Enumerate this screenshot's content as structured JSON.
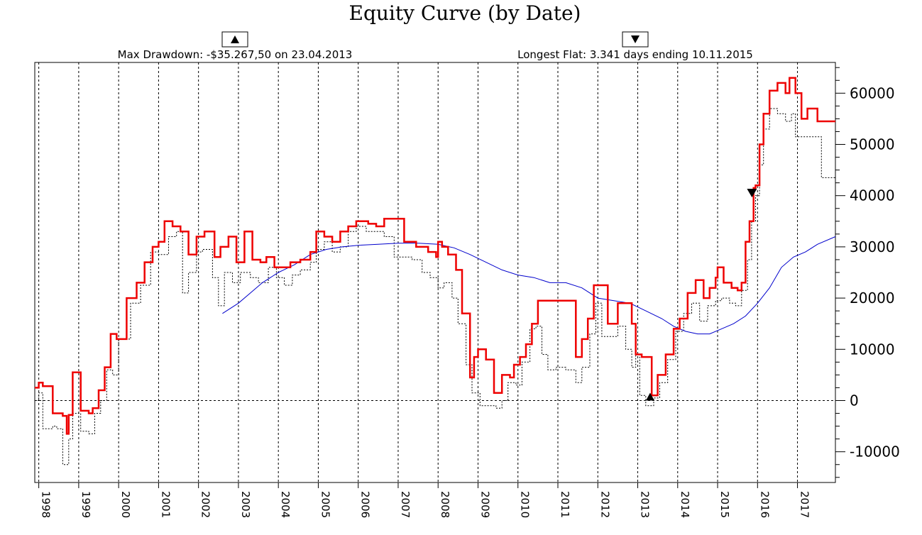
{
  "chart_data": {
    "type": "line",
    "title": "Equity Curve (by Date)",
    "annotations": {
      "max_drawdown": "Max Drawdown: -$35.267,50 on 23.04.2013",
      "longest_flat": "Longest Flat: 3.341 days ending 10.11.2015",
      "max_drawdown_date": 2013.31,
      "longest_flat_end_date": 2015.86
    },
    "xlim": [
      1997.9,
      2017.95
    ],
    "ylim": [
      -16000,
      66000
    ],
    "x_ticks": [
      "1998",
      "1999",
      "2000",
      "2001",
      "2002",
      "2003",
      "2004",
      "2005",
      "2006",
      "2007",
      "2008",
      "2009",
      "2010",
      "2011",
      "2012",
      "2013",
      "2014",
      "2015",
      "2016",
      "2017"
    ],
    "y_ticks": [
      60000,
      50000,
      40000,
      30000,
      20000,
      10000,
      0,
      -10000
    ],
    "y_tick_labels": [
      "60000",
      "50000",
      "40000",
      "30000",
      "20000",
      "10000",
      "0",
      "-10000"
    ],
    "grid": "vertical dotted at each year, dotted zero line",
    "series": [
      {
        "name": "",
        "color": "#ee0000",
        "points": [
          [
            1997.9,
            2500
          ],
          [
            1998.0,
            3500
          ],
          [
            1998.1,
            2800
          ],
          [
            1998.35,
            -2500
          ],
          [
            1998.6,
            -3000
          ],
          [
            1998.7,
            -6500
          ],
          [
            1998.75,
            -2800
          ],
          [
            1998.85,
            5500
          ],
          [
            1999.05,
            -2000
          ],
          [
            1999.25,
            -2500
          ],
          [
            1999.35,
            -1500
          ],
          [
            1999.5,
            2000
          ],
          [
            1999.65,
            6500
          ],
          [
            1999.8,
            13000
          ],
          [
            1999.95,
            12000
          ],
          [
            2000.2,
            20000
          ],
          [
            2000.45,
            23000
          ],
          [
            2000.65,
            27000
          ],
          [
            2000.85,
            30000
          ],
          [
            2001.0,
            31000
          ],
          [
            2001.15,
            35000
          ],
          [
            2001.35,
            34000
          ],
          [
            2001.55,
            33000
          ],
          [
            2001.75,
            28500
          ],
          [
            2001.95,
            32000
          ],
          [
            2002.15,
            33000
          ],
          [
            2002.4,
            28000
          ],
          [
            2002.55,
            30000
          ],
          [
            2002.75,
            32000
          ],
          [
            2002.95,
            27000
          ],
          [
            2003.15,
            33000
          ],
          [
            2003.35,
            27500
          ],
          [
            2003.55,
            27000
          ],
          [
            2003.7,
            28000
          ],
          [
            2003.9,
            26000
          ],
          [
            2004.1,
            26000
          ],
          [
            2004.3,
            27000
          ],
          [
            2004.55,
            27500
          ],
          [
            2004.8,
            29000
          ],
          [
            2004.95,
            33000
          ],
          [
            2005.15,
            32000
          ],
          [
            2005.35,
            31000
          ],
          [
            2005.55,
            33000
          ],
          [
            2005.75,
            34000
          ],
          [
            2005.95,
            35000
          ],
          [
            2006.25,
            34500
          ],
          [
            2006.45,
            34000
          ],
          [
            2006.65,
            35500
          ],
          [
            2006.95,
            35500
          ],
          [
            2007.15,
            31000
          ],
          [
            2007.45,
            30000
          ],
          [
            2007.75,
            29000
          ],
          [
            2007.95,
            28000
          ],
          [
            2008.0,
            31000
          ],
          [
            2008.1,
            30000
          ],
          [
            2008.25,
            28500
          ],
          [
            2008.45,
            25500
          ],
          [
            2008.6,
            17000
          ],
          [
            2008.8,
            4500
          ],
          [
            2008.9,
            8500
          ],
          [
            2009.0,
            10000
          ],
          [
            2009.2,
            8000
          ],
          [
            2009.4,
            1500
          ],
          [
            2009.6,
            5000
          ],
          [
            2009.8,
            4500
          ],
          [
            2009.9,
            7000
          ],
          [
            2010.05,
            8500
          ],
          [
            2010.2,
            11000
          ],
          [
            2010.35,
            15000
          ],
          [
            2010.5,
            19500
          ],
          [
            2010.65,
            19500
          ],
          [
            2010.95,
            19500
          ],
          [
            2011.2,
            19500
          ],
          [
            2011.45,
            8500
          ],
          [
            2011.6,
            12000
          ],
          [
            2011.75,
            16000
          ],
          [
            2011.9,
            22500
          ],
          [
            2012.1,
            22500
          ],
          [
            2012.25,
            15000
          ],
          [
            2012.5,
            19000
          ],
          [
            2012.85,
            15000
          ],
          [
            2012.95,
            9000
          ],
          [
            2013.1,
            8500
          ],
          [
            2013.35,
            1000
          ],
          [
            2013.5,
            5000
          ],
          [
            2013.7,
            9000
          ],
          [
            2013.9,
            14000
          ],
          [
            2014.05,
            16000
          ],
          [
            2014.25,
            21000
          ],
          [
            2014.45,
            23500
          ],
          [
            2014.65,
            20000
          ],
          [
            2014.8,
            22000
          ],
          [
            2014.95,
            24000
          ],
          [
            2015.0,
            26000
          ],
          [
            2015.15,
            23000
          ],
          [
            2015.35,
            22000
          ],
          [
            2015.5,
            21500
          ],
          [
            2015.6,
            23000
          ],
          [
            2015.7,
            31000
          ],
          [
            2015.8,
            35000
          ],
          [
            2015.9,
            41500
          ],
          [
            2015.95,
            42000
          ],
          [
            2016.05,
            50000
          ],
          [
            2016.15,
            56000
          ],
          [
            2016.3,
            60500
          ],
          [
            2016.5,
            62000
          ],
          [
            2016.7,
            60000
          ],
          [
            2016.8,
            63000
          ],
          [
            2016.95,
            60000
          ],
          [
            2017.1,
            55000
          ],
          [
            2017.25,
            57000
          ],
          [
            2017.5,
            54500
          ],
          [
            2017.95,
            54500
          ]
        ]
      },
      {
        "name": "",
        "color": "#000000",
        "style": "dotted",
        "points": [
          [
            1997.9,
            0
          ],
          [
            1998.0,
            1500
          ],
          [
            1998.1,
            -5500
          ],
          [
            1998.35,
            -5000
          ],
          [
            1998.45,
            -5500
          ],
          [
            1998.6,
            -12500
          ],
          [
            1998.75,
            -7500
          ],
          [
            1998.85,
            -2500
          ],
          [
            1999.05,
            -6000
          ],
          [
            1999.25,
            -6500
          ],
          [
            1999.4,
            -2500
          ],
          [
            1999.55,
            0
          ],
          [
            1999.7,
            6000
          ],
          [
            1999.85,
            5000
          ],
          [
            2000.0,
            12000
          ],
          [
            2000.3,
            19000
          ],
          [
            2000.55,
            22500
          ],
          [
            2000.8,
            29000
          ],
          [
            2001.0,
            28500
          ],
          [
            2001.25,
            32000
          ],
          [
            2001.45,
            33000
          ],
          [
            2001.6,
            21000
          ],
          [
            2001.75,
            25000
          ],
          [
            2001.95,
            29000
          ],
          [
            2002.1,
            29500
          ],
          [
            2002.35,
            24000
          ],
          [
            2002.5,
            18500
          ],
          [
            2002.65,
            25000
          ],
          [
            2002.85,
            23000
          ],
          [
            2003.05,
            25000
          ],
          [
            2003.3,
            24000
          ],
          [
            2003.5,
            23000
          ],
          [
            2003.75,
            26000
          ],
          [
            2003.95,
            24000
          ],
          [
            2004.15,
            22500
          ],
          [
            2004.35,
            24500
          ],
          [
            2004.55,
            25500
          ],
          [
            2004.8,
            27000
          ],
          [
            2004.95,
            29500
          ],
          [
            2005.15,
            31000
          ],
          [
            2005.35,
            29000
          ],
          [
            2005.55,
            30000
          ],
          [
            2005.75,
            33000
          ],
          [
            2005.95,
            34000
          ],
          [
            2006.2,
            33000
          ],
          [
            2006.45,
            33000
          ],
          [
            2006.65,
            32000
          ],
          [
            2006.9,
            28000
          ],
          [
            2007.1,
            28000
          ],
          [
            2007.35,
            27500
          ],
          [
            2007.6,
            25000
          ],
          [
            2007.8,
            24000
          ],
          [
            2008.0,
            22000
          ],
          [
            2008.15,
            23000
          ],
          [
            2008.35,
            20000
          ],
          [
            2008.5,
            15000
          ],
          [
            2008.7,
            7000
          ],
          [
            2008.85,
            1500
          ],
          [
            2009.05,
            -1000
          ],
          [
            2009.25,
            -1000
          ],
          [
            2009.45,
            -1500
          ],
          [
            2009.6,
            0
          ],
          [
            2009.75,
            3500
          ],
          [
            2009.95,
            3000
          ],
          [
            2010.1,
            7500
          ],
          [
            2010.3,
            14000
          ],
          [
            2010.45,
            14500
          ],
          [
            2010.6,
            9000
          ],
          [
            2010.75,
            6000
          ],
          [
            2010.95,
            6500
          ],
          [
            2011.2,
            6000
          ],
          [
            2011.45,
            3500
          ],
          [
            2011.6,
            6500
          ],
          [
            2011.8,
            13000
          ],
          [
            2011.95,
            19000
          ],
          [
            2012.1,
            12500
          ],
          [
            2012.3,
            12500
          ],
          [
            2012.5,
            14500
          ],
          [
            2012.7,
            10000
          ],
          [
            2012.85,
            6500
          ],
          [
            2012.95,
            9000
          ],
          [
            2013.05,
            1000
          ],
          [
            2013.2,
            -1000
          ],
          [
            2013.4,
            500
          ],
          [
            2013.55,
            3500
          ],
          [
            2013.75,
            8000
          ],
          [
            2013.95,
            13500
          ],
          [
            2014.15,
            17000
          ],
          [
            2014.35,
            19000
          ],
          [
            2014.55,
            15500
          ],
          [
            2014.75,
            18500
          ],
          [
            2014.95,
            19500
          ],
          [
            2015.1,
            20000
          ],
          [
            2015.3,
            19000
          ],
          [
            2015.45,
            18500
          ],
          [
            2015.6,
            21500
          ],
          [
            2015.75,
            27500
          ],
          [
            2015.85,
            35000
          ],
          [
            2015.95,
            40000
          ],
          [
            2016.05,
            46000
          ],
          [
            2016.15,
            53000
          ],
          [
            2016.3,
            57000
          ],
          [
            2016.5,
            56000
          ],
          [
            2016.7,
            54500
          ],
          [
            2016.85,
            56000
          ],
          [
            2016.95,
            51500
          ],
          [
            2017.25,
            51500
          ],
          [
            2017.6,
            43500
          ],
          [
            2017.95,
            43500
          ]
        ]
      },
      {
        "name": "",
        "color": "#0000cc",
        "points": [
          [
            2002.6,
            17000
          ],
          [
            2003.0,
            19000
          ],
          [
            2003.3,
            21000
          ],
          [
            2003.6,
            23000
          ],
          [
            2004.0,
            25000
          ],
          [
            2004.4,
            26500
          ],
          [
            2004.8,
            28500
          ],
          [
            2005.2,
            29500
          ],
          [
            2005.6,
            30000
          ],
          [
            2006.0,
            30300
          ],
          [
            2006.5,
            30500
          ],
          [
            2007.0,
            30700
          ],
          [
            2007.5,
            30700
          ],
          [
            2008.0,
            30500
          ],
          [
            2008.4,
            29800
          ],
          [
            2008.8,
            28500
          ],
          [
            2009.2,
            27000
          ],
          [
            2009.6,
            25500
          ],
          [
            2010.0,
            24500
          ],
          [
            2010.4,
            24000
          ],
          [
            2010.8,
            23000
          ],
          [
            2011.2,
            23000
          ],
          [
            2011.6,
            22000
          ],
          [
            2012.0,
            20000
          ],
          [
            2012.4,
            19500
          ],
          [
            2012.8,
            19000
          ],
          [
            2013.2,
            17500
          ],
          [
            2013.6,
            16000
          ],
          [
            2013.9,
            14500
          ],
          [
            2014.2,
            13500
          ],
          [
            2014.5,
            13000
          ],
          [
            2014.8,
            13000
          ],
          [
            2015.1,
            14000
          ],
          [
            2015.4,
            15000
          ],
          [
            2015.7,
            16500
          ],
          [
            2016.0,
            19000
          ],
          [
            2016.3,
            22000
          ],
          [
            2016.6,
            26000
          ],
          [
            2016.9,
            28000
          ],
          [
            2017.2,
            29000
          ],
          [
            2017.5,
            30500
          ],
          [
            2017.95,
            32000
          ]
        ]
      }
    ]
  }
}
